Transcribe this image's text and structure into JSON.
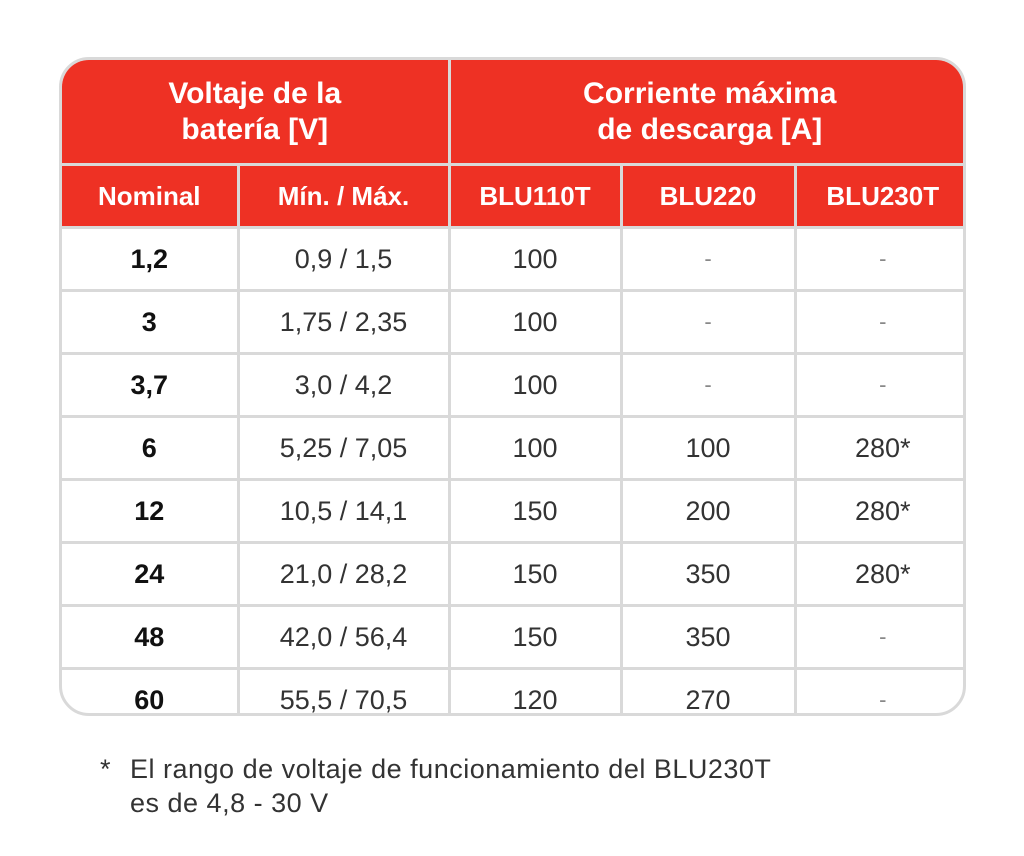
{
  "header": {
    "group_voltage": "Voltaje de la\nbatería [V]",
    "group_current": "Corriente máxima\nde descarga [A]",
    "columns": [
      "Nominal",
      "Mín. / Máx.",
      "BLU110T",
      "BLU220",
      "BLU230T"
    ]
  },
  "rows": [
    [
      "1,2",
      "0,9 / 1,5",
      "100",
      "-",
      "-"
    ],
    [
      "3",
      "1,75 / 2,35",
      "100",
      "-",
      "-"
    ],
    [
      "3,7",
      "3,0 / 4,2",
      "100",
      "-",
      "-"
    ],
    [
      "6",
      "5,25 / 7,05",
      "100",
      "100",
      "280*"
    ],
    [
      "12",
      "10,5 / 14,1",
      "150",
      "200",
      "280*"
    ],
    [
      "24",
      "21,0 / 28,2",
      "150",
      "350",
      "280*"
    ],
    [
      "48",
      "42,0 / 56,4",
      "150",
      "350",
      "-"
    ],
    [
      "60",
      "55,5 / 70,5",
      "120",
      "270",
      "-"
    ]
  ],
  "footnote": {
    "marker": "*",
    "line1": "El rango de voltaje de funcionamiento del BLU230T",
    "line2": "es de 4,8 - 30 V"
  },
  "colors": {
    "header_bg": "#ee3124",
    "border": "#d9d9d9"
  }
}
